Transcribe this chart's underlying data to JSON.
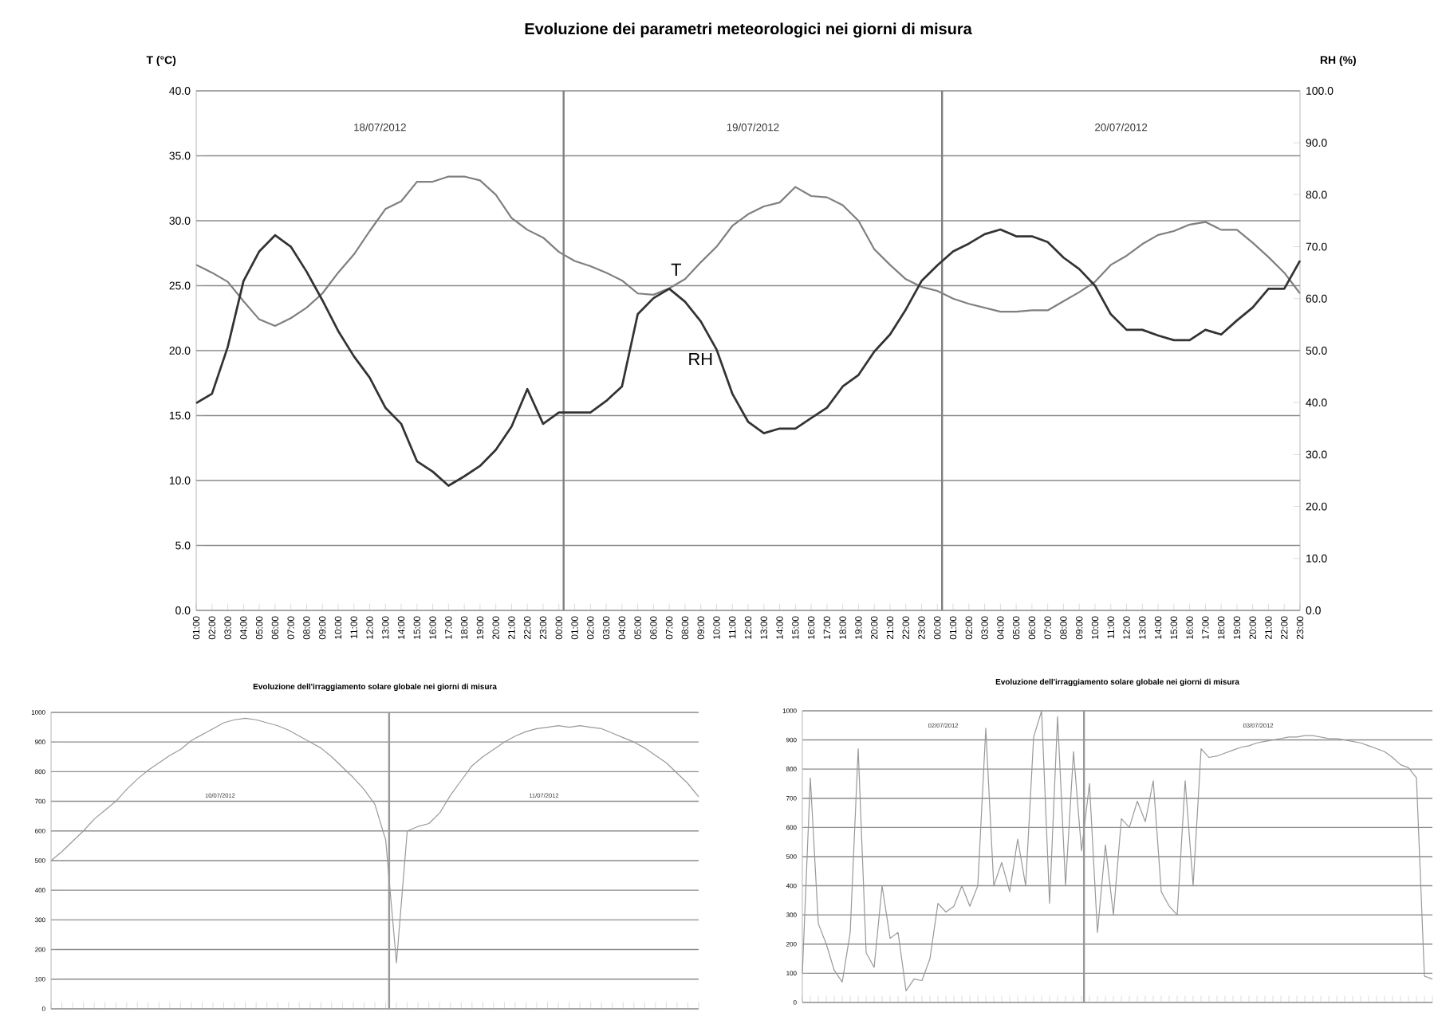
{
  "chart_data": [
    {
      "type": "line",
      "title": "Evoluzione  dei parametri meteorologici  nei giorni di misura",
      "ylabel": "T (°C)",
      "y2label": "RH (%)",
      "categories": [
        "01:00",
        "02:00",
        "03:00",
        "04:00",
        "05:00",
        "06:00",
        "07:00",
        "08:00",
        "09:00",
        "10:00",
        "11:00",
        "12:00",
        "13:00",
        "14:00",
        "15:00",
        "16:00",
        "17:00",
        "18:00",
        "19:00",
        "20:00",
        "21:00",
        "22:00",
        "23:00",
        "00:00",
        "01:00",
        "02:00",
        "03:00",
        "04:00",
        "05:00",
        "06:00",
        "07:00",
        "08:00",
        "09:00",
        "10:00",
        "11:00",
        "12:00",
        "13:00",
        "14:00",
        "15:00",
        "16:00",
        "17:00",
        "18:00",
        "19:00",
        "20:00",
        "21:00",
        "22:00",
        "23:00",
        "00:00",
        "01:00",
        "02:00",
        "03:00",
        "04:00",
        "05:00",
        "06:00",
        "07:00",
        "08:00",
        "09:00",
        "10:00",
        "11:00",
        "12:00",
        "13:00",
        "14:00",
        "15:00",
        "16:00",
        "17:00",
        "18:00",
        "19:00",
        "20:00",
        "21:00",
        "22:00",
        "23:00"
      ],
      "ylim": [
        0,
        40
      ],
      "yticks": [
        {
          "value": 0,
          "label": "0.0"
        },
        {
          "value": 5,
          "label": "5.0"
        },
        {
          "value": 10,
          "label": "10.0"
        },
        {
          "value": 15,
          "label": "15.0"
        },
        {
          "value": 20,
          "label": "20.0"
        },
        {
          "value": 25,
          "label": "25.0"
        },
        {
          "value": 30,
          "label": "30.0"
        },
        {
          "value": 35,
          "label": "35.0"
        },
        {
          "value": 40,
          "label": "40.0"
        }
      ],
      "y2lim": [
        0,
        100
      ],
      "y2ticks": [
        {
          "value": 0,
          "label": "0.0"
        },
        {
          "value": 10,
          "label": "10.0"
        },
        {
          "value": 20,
          "label": "20.0"
        },
        {
          "value": 30,
          "label": "30.0"
        },
        {
          "value": 40,
          "label": "40.0"
        },
        {
          "value": 50,
          "label": "50.0"
        },
        {
          "value": 60,
          "label": "60.0"
        },
        {
          "value": 70,
          "label": "70.0"
        },
        {
          "value": 80,
          "label": "80.0"
        },
        {
          "value": 90,
          "label": "90.0"
        },
        {
          "value": 100,
          "label": "100.0"
        }
      ],
      "grid": "y",
      "legend": false,
      "annotations": [
        "18/07/2012",
        "19/07/2012",
        "20/07/2012"
      ],
      "series": [
        {
          "name": "T",
          "color": "#7f7f7f",
          "values": [
            26.6,
            26.0,
            25.3,
            23.8,
            22.4,
            21.9,
            22.5,
            23.3,
            24.4,
            26.0,
            27.4,
            29.2,
            30.9,
            31.5,
            33.0,
            33.0,
            33.4,
            33.4,
            33.1,
            32.0,
            30.2,
            29.3,
            28.7,
            27.6,
            26.9,
            26.5,
            26.0,
            25.4,
            24.4,
            24.3,
            24.8,
            25.5,
            26.8,
            28.0,
            29.6,
            30.5,
            31.1,
            31.4,
            32.6,
            31.9,
            31.8,
            31.2,
            30.0,
            27.8,
            26.6,
            25.5,
            24.9,
            24.6,
            24.0,
            23.6,
            23.3,
            23.0,
            23.0,
            23.1,
            23.1,
            23.8,
            24.5,
            25.3,
            26.6,
            27.3,
            28.2,
            28.9,
            29.2,
            29.7,
            29.9,
            29.3,
            29.3,
            28.3,
            27.2,
            26.0,
            24.4
          ]
        },
        {
          "name": "RH",
          "color": "#333333",
          "axis": "y2",
          "values": [
            39.9,
            41.7,
            50.7,
            63.4,
            69.1,
            72.2,
            70.0,
            65.2,
            59.7,
            53.8,
            48.9,
            44.8,
            39.0,
            35.9,
            28.7,
            26.7,
            24.0,
            25.8,
            27.8,
            30.9,
            35.4,
            42.6,
            35.9,
            38.1,
            38.1,
            38.1,
            40.3,
            43.1,
            57.0,
            60.1,
            61.9,
            59.4,
            55.6,
            50.2,
            41.7,
            36.3,
            34.1,
            35.0,
            35.0,
            37.0,
            39.0,
            43.1,
            45.3,
            49.8,
            53.1,
            57.9,
            63.4,
            66.4,
            69.1,
            70.6,
            72.4,
            73.3,
            72.0,
            72.0,
            70.9,
            67.9,
            65.7,
            62.5,
            57.0,
            54.0,
            54.0,
            52.9,
            52.0,
            52.0,
            54.0,
            53.1,
            55.8,
            58.3,
            61.9,
            61.9,
            67.3
          ]
        }
      ]
    },
    {
      "type": "line",
      "title": "Evoluzione dell'irraggiamento solare globale nei giorni di misura",
      "categories": [
        null,
        null,
        null,
        null,
        null,
        null,
        null,
        null,
        null,
        null,
        null,
        null,
        null,
        null,
        null,
        null,
        null,
        null,
        null,
        null,
        null,
        null,
        null,
        null,
        null,
        null,
        null,
        null,
        null,
        null,
        null,
        null,
        null,
        null,
        null,
        null,
        null,
        null,
        null,
        null,
        null,
        null,
        null,
        null,
        null,
        null,
        null,
        null,
        null,
        null,
        null,
        null,
        null,
        null,
        null,
        null,
        null,
        null,
        null,
        null,
        null
      ],
      "ylim": [
        0,
        1000
      ],
      "yticks": [
        0,
        100,
        200,
        300,
        400,
        500,
        600,
        700,
        800,
        900,
        1000
      ],
      "grid": "y",
      "legend": false,
      "annotations": [
        "10/07/2012",
        "11/07/2012"
      ],
      "series": [
        {
          "color": "#999999",
          "values": [
            500,
            530,
            565,
            600,
            640,
            670,
            700,
            740,
            775,
            805,
            830,
            855,
            875,
            905,
            925,
            945,
            965,
            975,
            980,
            975,
            965,
            955,
            940,
            920,
            900,
            880,
            850,
            815,
            780,
            740,
            690,
            570,
            155,
            600,
            615,
            625,
            660,
            720,
            770,
            820,
            850,
            875,
            900,
            920,
            935,
            945,
            950,
            955,
            950,
            955,
            950,
            945,
            930,
            915,
            900,
            880,
            855,
            830,
            795,
            760,
            715
          ]
        }
      ]
    },
    {
      "type": "line",
      "title": "Evoluzione dell'irraggiamento solare globale nei giorni di misura",
      "categories": [
        null,
        null,
        null,
        null,
        null,
        null,
        null,
        null,
        null,
        null,
        null,
        null,
        null,
        null,
        null,
        null,
        null,
        null,
        null,
        null,
        null,
        null,
        null,
        null,
        null,
        null,
        null,
        null,
        null,
        null,
        null,
        null,
        null,
        null,
        null,
        null,
        null,
        null,
        null,
        null,
        null,
        null,
        null,
        null,
        null,
        null,
        null,
        null,
        null,
        null,
        null,
        null,
        null,
        null,
        null,
        null,
        null,
        null,
        null,
        null,
        null,
        null,
        null,
        null,
        null,
        null,
        null,
        null,
        null,
        null,
        null,
        null,
        null,
        null,
        null,
        null,
        null,
        null,
        null,
        null
      ],
      "ylim": [
        0,
        1000
      ],
      "yticks": [
        0,
        100,
        200,
        300,
        400,
        500,
        600,
        700,
        800,
        900,
        1000
      ],
      "grid": "y",
      "legend": false,
      "annotations": [
        "02/07/2012",
        "03/07/2012"
      ],
      "series": [
        {
          "color": "#999999",
          "values": [
            100,
            770,
            270,
            200,
            110,
            70,
            240,
            870,
            170,
            120,
            400,
            220,
            240,
            40,
            80,
            75,
            150,
            340,
            310,
            330,
            400,
            330,
            400,
            940,
            400,
            480,
            380,
            560,
            400,
            910,
            1000,
            340,
            980,
            400,
            860,
            520,
            750,
            240,
            540,
            300,
            630,
            600,
            690,
            620,
            760,
            380,
            330,
            300,
            760,
            400,
            870,
            840,
            845,
            855,
            865,
            875,
            880,
            890,
            895,
            900,
            905,
            910,
            910,
            915,
            915,
            910,
            905,
            905,
            900,
            895,
            890,
            880,
            870,
            860,
            840,
            815,
            805,
            770,
            90,
            80
          ]
        }
      ]
    }
  ]
}
